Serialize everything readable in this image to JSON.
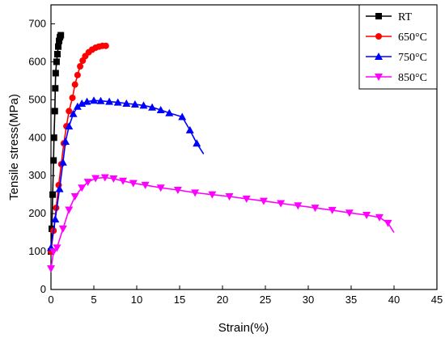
{
  "chart_data": {
    "type": "line",
    "xlabel": "Strain(%)",
    "ylabel": "Tensile stress(MPa)",
    "xlim": [
      0,
      45
    ],
    "ylim": [
      0,
      750
    ],
    "xticks": [
      0,
      5,
      10,
      15,
      20,
      25,
      30,
      35,
      40,
      45
    ],
    "yticks": [
      0,
      100,
      200,
      300,
      400,
      500,
      600,
      700
    ],
    "grid": false,
    "legend_position": "top-right",
    "series": [
      {
        "name": "RT",
        "color": "#000000",
        "marker": "square",
        "points": [
          [
            0,
            100
          ],
          [
            0.1,
            160
          ],
          [
            0.2,
            250
          ],
          [
            0.3,
            340
          ],
          [
            0.35,
            400
          ],
          [
            0.45,
            470
          ],
          [
            0.5,
            530
          ],
          [
            0.55,
            570
          ],
          [
            0.65,
            600
          ],
          [
            0.75,
            620
          ],
          [
            0.85,
            640
          ],
          [
            0.95,
            655
          ],
          [
            1.05,
            665
          ],
          [
            1.15,
            670
          ]
        ]
      },
      {
        "name": "650°C",
        "color": "#ff0000",
        "marker": "circle",
        "points": [
          [
            0,
            100
          ],
          [
            0.3,
            155
          ],
          [
            0.6,
            215
          ],
          [
            0.9,
            275
          ],
          [
            1.2,
            330
          ],
          [
            1.5,
            385
          ],
          [
            1.8,
            430
          ],
          [
            2.1,
            470
          ],
          [
            2.5,
            505
          ],
          [
            2.8,
            540
          ],
          [
            3.1,
            565
          ],
          [
            3.4,
            588
          ],
          [
            3.7,
            603
          ],
          [
            4.0,
            615
          ],
          [
            4.4,
            625
          ],
          [
            4.8,
            632
          ],
          [
            5.2,
            637
          ],
          [
            5.6,
            640
          ],
          [
            6.0,
            642
          ],
          [
            6.4,
            642
          ]
        ]
      },
      {
        "name": "750°C",
        "color": "#0000ff",
        "marker": "triangle-up",
        "points": [
          [
            0,
            110
          ],
          [
            0.5,
            185
          ],
          [
            1.0,
            265
          ],
          [
            1.4,
            335
          ],
          [
            1.7,
            390
          ],
          [
            2.1,
            430
          ],
          [
            2.6,
            463
          ],
          [
            3.1,
            482
          ],
          [
            3.6,
            490
          ],
          [
            4.2,
            495
          ],
          [
            5.0,
            498
          ],
          [
            5.8,
            497
          ],
          [
            6.8,
            495
          ],
          [
            7.8,
            493
          ],
          [
            8.8,
            490
          ],
          [
            9.8,
            488
          ],
          [
            10.8,
            485
          ],
          [
            11.8,
            480
          ],
          [
            12.8,
            473
          ],
          [
            13.8,
            465
          ],
          [
            15.3,
            455
          ],
          [
            16.2,
            420
          ],
          [
            17.0,
            385
          ],
          [
            17.8,
            357
          ]
        ]
      },
      {
        "name": "850°C",
        "color": "#ff00ff",
        "marker": "triangle-down",
        "points": [
          [
            0,
            55
          ],
          [
            0.3,
            100
          ],
          [
            0.7,
            110
          ],
          [
            1.4,
            160
          ],
          [
            2.1,
            210
          ],
          [
            2.8,
            245
          ],
          [
            3.6,
            268
          ],
          [
            4.3,
            283
          ],
          [
            5.2,
            293
          ],
          [
            6.3,
            295
          ],
          [
            7.3,
            292
          ],
          [
            8.4,
            286
          ],
          [
            9.6,
            280
          ],
          [
            11.0,
            275
          ],
          [
            12.8,
            268
          ],
          [
            14.8,
            262
          ],
          [
            16.8,
            255
          ],
          [
            18.8,
            250
          ],
          [
            20.8,
            245
          ],
          [
            22.8,
            239
          ],
          [
            24.8,
            233
          ],
          [
            26.8,
            227
          ],
          [
            28.8,
            221
          ],
          [
            30.8,
            215
          ],
          [
            32.8,
            209
          ],
          [
            34.8,
            202
          ],
          [
            36.8,
            196
          ],
          [
            38.3,
            190
          ],
          [
            39.3,
            175
          ],
          [
            40.0,
            150
          ]
        ]
      }
    ]
  }
}
